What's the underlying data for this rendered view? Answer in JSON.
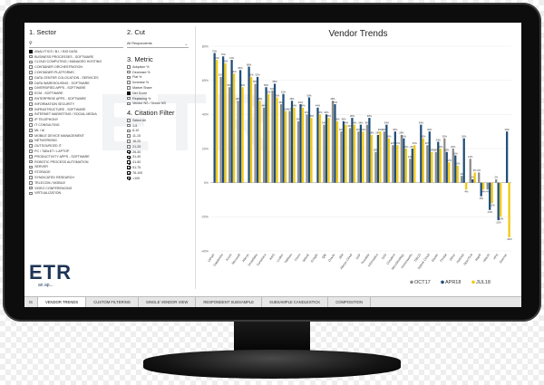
{
  "sector": {
    "title": "1. Sector",
    "items": [
      {
        "label": "ANALYTICS / B.I. / BIG DATA",
        "state": "on"
      },
      {
        "label": "BUSINESS PROCESSES - SOFTWARE",
        "state": "off"
      },
      {
        "label": "CLOUD COMPUTING / MANAGED HOSTING",
        "state": "off"
      },
      {
        "label": "CONTAINER ORCHESTRATION",
        "state": "off"
      },
      {
        "label": "CONTAINER PLATFORMS",
        "state": "off"
      },
      {
        "label": "DATA CENTER COLOCATION - SERVICES",
        "state": "off"
      },
      {
        "label": "DATA WAREHOUSING - SOFTWARE",
        "state": "off"
      },
      {
        "label": "DIVERSIFIED APPS - SOFTWARE",
        "state": "off"
      },
      {
        "label": "ECM - SOFTWARE",
        "state": "off"
      },
      {
        "label": "ENTERPRISE APPS - SOFTWARE",
        "state": "off"
      },
      {
        "label": "INFORMATION SECURITY",
        "state": "off"
      },
      {
        "label": "INFRASTRUCTURE - SOFTWARE",
        "state": "off"
      },
      {
        "label": "INTERNET MARKETING / SOCIAL MEDIA",
        "state": "off"
      },
      {
        "label": "IP TELEPHONY",
        "state": "off"
      },
      {
        "label": "IT CONSULTING",
        "state": "off"
      },
      {
        "label": "ML / AI",
        "state": "off"
      },
      {
        "label": "MOBILE DEVICE MANAGEMENT",
        "state": "off"
      },
      {
        "label": "NETWORKING",
        "state": "off"
      },
      {
        "label": "OUTSOURCED IT",
        "state": "off"
      },
      {
        "label": "PC / TABLET / LAPTOP",
        "state": "off"
      },
      {
        "label": "PRODUCTIVITY APPS - SOFTWARE",
        "state": "off"
      },
      {
        "label": "ROBOTIC PROCESS AUTOMATION",
        "state": "off"
      },
      {
        "label": "SERVER",
        "state": "off"
      },
      {
        "label": "STORAGE",
        "state": "off"
      },
      {
        "label": "SYNDICATED RESEARCH",
        "state": "off"
      },
      {
        "label": "TELECOM / MOBILE",
        "state": "off"
      },
      {
        "label": "VIDEO CONFERENCING",
        "state": "off"
      },
      {
        "label": "VIRTUALIZATION",
        "state": "off"
      }
    ]
  },
  "cut": {
    "title": "2. Cut",
    "value": "All Respondents"
  },
  "metric": {
    "title": "3. Metric",
    "items": [
      {
        "label": "Adoption %",
        "state": "off"
      },
      {
        "label": "Decrease %",
        "state": "off"
      },
      {
        "label": "Flat %",
        "state": "off"
      },
      {
        "label": "Increase %",
        "state": "off"
      },
      {
        "label": "Market Share",
        "state": "off"
      },
      {
        "label": "Net Score",
        "state": "on"
      },
      {
        "label": "Replacing %",
        "state": "off"
      },
      {
        "label": "Vendor NS / Sector NS",
        "state": "off"
      }
    ]
  },
  "citation": {
    "title": "4. Citation Filter",
    "items": [
      {
        "label": "Select All",
        "state": "off"
      },
      {
        "label": "1-5",
        "state": "off"
      },
      {
        "label": "6-10",
        "state": "off"
      },
      {
        "label": "11-15",
        "state": "off"
      },
      {
        "label": "16-20",
        "state": "off"
      },
      {
        "label": "21-25",
        "state": "off"
      },
      {
        "label": "26-30",
        "state": "check"
      },
      {
        "label": "31-40",
        "state": "check"
      },
      {
        "label": "41-50",
        "state": "check"
      },
      {
        "label": "51-75",
        "state": "check"
      },
      {
        "label": "76-100",
        "state": "check"
      },
      {
        "label": ">100",
        "state": "check"
      }
    ]
  },
  "logo": {
    "name": "ETR",
    "tagline": "an ap...",
    "watermark": "ETR"
  },
  "tabs": [
    {
      "label": "IS",
      "active": false
    },
    {
      "label": "VENDOR TRENDS",
      "active": true
    },
    {
      "label": "CUSTOM FILTERING",
      "active": false
    },
    {
      "label": "SINGLE VENDOR VIEW",
      "active": false
    },
    {
      "label": "RESPONDENT SUBSAMPLE",
      "active": false
    },
    {
      "label": "SUBSAMPLE CANDLESTICK",
      "active": false
    },
    {
      "label": "COMPOSITION",
      "active": false
    }
  ],
  "colors": {
    "oct17": "#8c8c8c",
    "apr18": "#1f4e79",
    "jul18": "#f2c80f"
  },
  "chart_data": {
    "type": "bar",
    "title": "Vendor Trends",
    "ylim": [
      -40,
      80
    ],
    "yticks": [
      80,
      60,
      40,
      20,
      0,
      -20,
      -40
    ],
    "ytick_labels": [
      "80%",
      "60%",
      "40%",
      "20%",
      "0%",
      "-20%",
      "-40%"
    ],
    "legend_position": "bottom-right",
    "categories": [
      "UiPath",
      "Databricks",
      "Azure",
      "Microsoft",
      "Alteryx",
      "Snowflake",
      "Dynatrace",
      "AWS",
      "Looker",
      "Tableau",
      "Domo",
      "Splunk",
      "Google",
      "Qlik",
      "Oracle",
      "IBM",
      "Alteryx Cloud",
      "SAP",
      "Teradata",
      "Informatica",
      "SAS",
      "Cloudera",
      "MicroStrategy",
      "Hortonworks",
      "TIBCO",
      "Splunk Cloud",
      "Elastic",
      "Pivotal",
      "Other",
      "Hadoop",
      "OpenText",
      "MapR",
      "Hitachi",
      "HPE",
      "Sisense"
    ],
    "series": [
      {
        "name": "OCT17",
        "values": [
          null,
          62,
          56,
          48,
          null,
          58,
          44,
          54,
          46,
          42,
          36,
          40,
          null,
          34,
          48,
          30,
          32,
          30,
          34,
          18,
          30,
          22,
          28,
          14,
          null,
          22,
          18,
          26,
          20,
          4,
          14,
          6,
          -4,
          2,
          null
        ]
      },
      {
        "name": "APR18",
        "values": [
          76,
          74,
          72,
          66,
          68,
          62,
          56,
          58,
          52,
          48,
          46,
          50,
          44,
          40,
          46,
          36,
          38,
          34,
          38,
          28,
          34,
          30,
          26,
          20,
          34,
          30,
          24,
          18,
          16,
          26,
          2,
          -8,
          -16,
          -22,
          30
        ]
      },
      {
        "name": "JUL18",
        "values": [
          72,
          70,
          64,
          56,
          62,
          48,
          52,
          50,
          42,
          44,
          44,
          38,
          40,
          38,
          36,
          34,
          34,
          30,
          28,
          30,
          26,
          22,
          20,
          22,
          26,
          18,
          20,
          12,
          10,
          -4,
          6,
          -4,
          -12,
          -20,
          -32
        ]
      }
    ]
  }
}
